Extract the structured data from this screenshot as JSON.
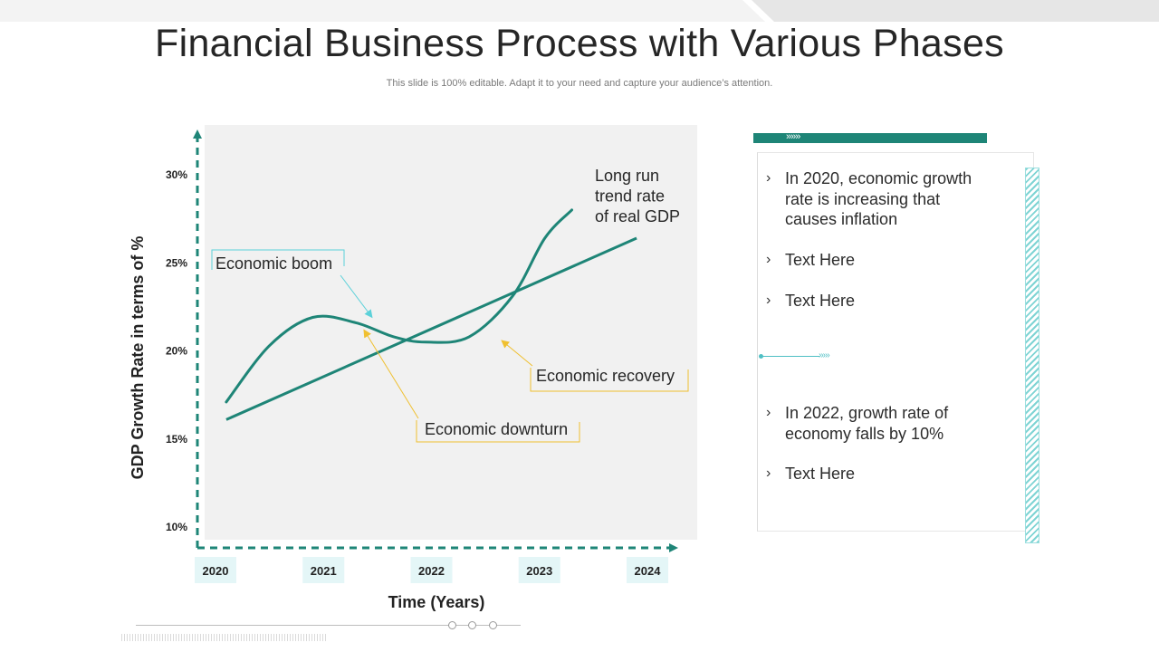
{
  "page": {
    "title": "Financial Business Process with Various Phases",
    "subtitle": "This slide is 100% editable. Adapt it to your need and capture your audience’s attention."
  },
  "colors": {
    "teal": "#1e8577",
    "light_teal": "#5cd1d9",
    "yellow": "#f0c030",
    "plot_bg": "#f1f1f1"
  },
  "chart_data": {
    "type": "line",
    "xlabel": "Time (Years)",
    "ylabel": "GDP Growth Rate in terms of %",
    "x_ticks": [
      "2020",
      "2021",
      "2022",
      "2023",
      "2024"
    ],
    "y_ticks": [
      "10%",
      "15%",
      "20%",
      "25%",
      "30%"
    ],
    "xlim": [
      2020,
      2024
    ],
    "ylim": [
      10,
      30
    ],
    "grid": false,
    "series": [
      {
        "name": "Long run trend rate of real GDP",
        "points": [
          [
            2020.1,
            16.1
          ],
          [
            2023.9,
            26.4
          ]
        ]
      },
      {
        "name": "",
        "points": [
          [
            2020.1,
            17.1
          ],
          [
            2020.5,
            20.3
          ],
          [
            2020.9,
            21.9
          ],
          [
            2021.3,
            21.6
          ],
          [
            2021.65,
            20.8
          ],
          [
            2021.95,
            20.5
          ],
          [
            2022.35,
            20.8
          ],
          [
            2022.75,
            23.1
          ],
          [
            2023.05,
            26.4
          ],
          [
            2023.3,
            28.0
          ]
        ]
      }
    ],
    "annotations": [
      {
        "text": "Long run trend rate of real GDP",
        "lines": [
          "Long run",
          "trend rate",
          "of real GDP"
        ],
        "color": "none"
      },
      {
        "text": "Economic boom",
        "target": [
          2021.45,
          21.7
        ],
        "color": "#5cd1d9"
      },
      {
        "text": "Economic downturn",
        "target": [
          2021.4,
          21.5
        ],
        "color": "#f0c030"
      },
      {
        "text": "Economic recovery",
        "target": [
          2022.65,
          20.9
        ],
        "color": "#f0c030"
      }
    ]
  },
  "panel": {
    "bullets": [
      "In 2020, economic growth rate is increasing that causes inflation",
      "Text Here",
      "Text Here",
      "In 2022, growth rate of economy falls by 10%",
      "Text Here"
    ],
    "bullet_mark": "›",
    "chevrons": "»»»",
    "divider_chevrons": "›››››"
  }
}
